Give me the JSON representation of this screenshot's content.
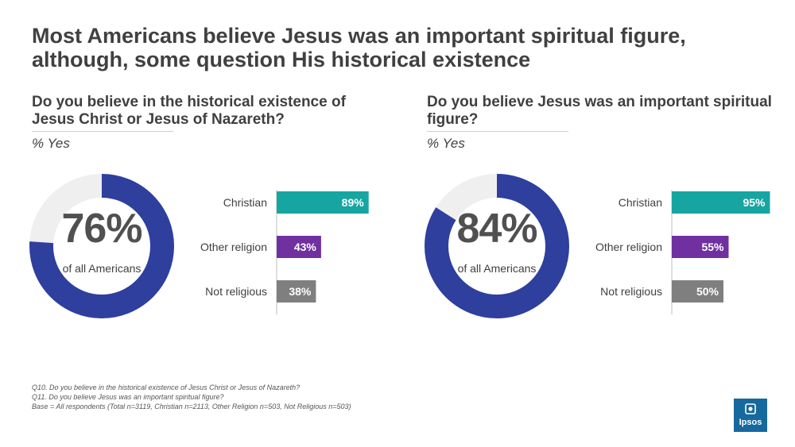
{
  "title": "Most Americans believe Jesus was an important spiritual figure, although, some question His historical existence",
  "colors": {
    "donut_fill": "#2e3f9e",
    "donut_track": "#efefef",
    "christian": "#17a5a2",
    "other_religion": "#7030a0",
    "not_religious": "#7f7f7f",
    "brand": "#16699e"
  },
  "chart_data": [
    {
      "type": "bar",
      "title": "Do you believe in the historical existence of Jesus Christ or Jesus of Nazareth?",
      "subtitle": "% Yes",
      "total": {
        "value": 76,
        "label": "76%",
        "sub": "of all Americans"
      },
      "categories": [
        "Christian",
        "Other religion",
        "Not religious"
      ],
      "values": [
        89,
        43,
        38
      ],
      "labels": [
        "89%",
        "43%",
        "38%"
      ],
      "xlim": [
        0,
        100
      ]
    },
    {
      "type": "bar",
      "title": "Do you believe Jesus was an important spiritual figure?",
      "subtitle": "% Yes",
      "total": {
        "value": 84,
        "label": "84%",
        "sub": "of all Americans"
      },
      "categories": [
        "Christian",
        "Other religion",
        "Not religious"
      ],
      "values": [
        95,
        55,
        50
      ],
      "labels": [
        "95%",
        "55%",
        "50%"
      ],
      "xlim": [
        0,
        100
      ]
    }
  ],
  "footnotes": [
    "Q10. Do you believe in the historical existence of Jesus Christ or Jesus of Nazareth?",
    "Q11. Do you believe Jesus was an important spiritual figure?",
    "Base =  All respondents (Total n=3119, Christian n=2113, Other Religion n=503, Not Religious n=503)"
  ],
  "logo": {
    "text": "Ipsos",
    "icon": "ipsos-logo-icon"
  }
}
